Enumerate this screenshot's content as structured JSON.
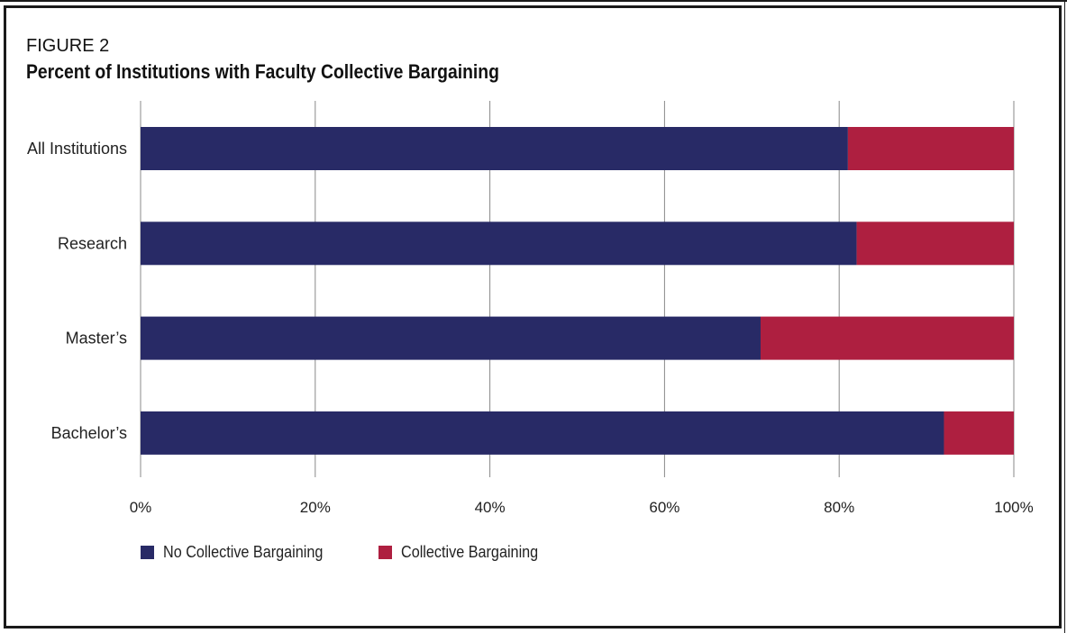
{
  "figure": {
    "label": "FIGURE 2",
    "title": "Percent of Institutions with Faculty Collective Bargaining"
  },
  "colors": {
    "no_collective_bargaining": "#282a66",
    "collective_bargaining": "#ae1f40",
    "grid": "#888888"
  },
  "chart_data": {
    "type": "bar",
    "orientation": "horizontal",
    "stacked": true,
    "title": "Percent of Institutions with Faculty Collective Bargaining",
    "categories": [
      "All Institutions",
      "Research",
      "Master’s",
      "Bachelor’s"
    ],
    "series": [
      {
        "name": "No Collective Bargaining",
        "values": [
          81,
          82,
          71,
          92
        ]
      },
      {
        "name": "Collective Bargaining",
        "values": [
          19,
          18,
          29,
          8
        ]
      }
    ],
    "xlim": [
      0,
      100
    ],
    "x_ticks": [
      "0%",
      "20%",
      "40%",
      "60%",
      "80%",
      "100%"
    ],
    "grid": "vertical",
    "legend_placement": "bottom-left"
  },
  "legend": [
    {
      "label": "No Collective Bargaining"
    },
    {
      "label": "Collective Bargaining"
    }
  ]
}
